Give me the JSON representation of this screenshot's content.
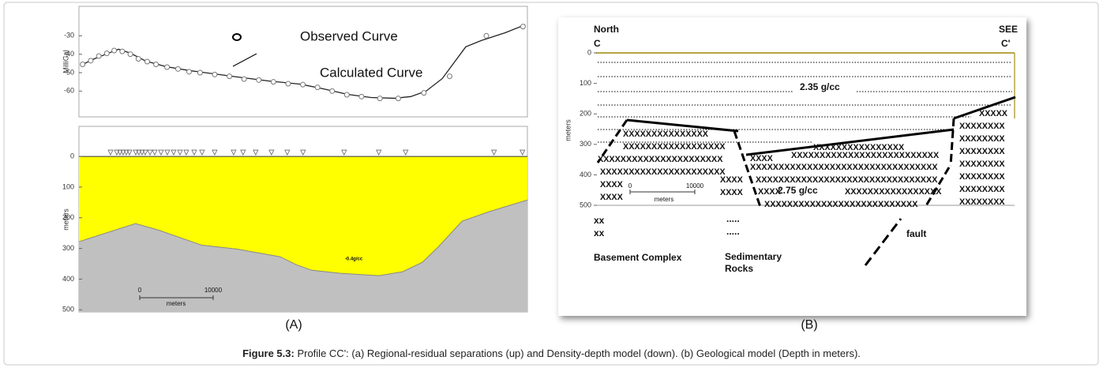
{
  "panel_a": {
    "label": "(A)",
    "gravity": {
      "type": "line",
      "y_label": "MilliGal",
      "legend": {
        "observed": "Observed Curve",
        "calculated": "Calculated Curve"
      },
      "xlim": [
        0,
        61100
      ],
      "ylim": [
        -74,
        -14
      ],
      "yticks": [
        -30,
        -40,
        -50,
        -60
      ],
      "calculated": {
        "x": [
          300,
          2150,
          4300,
          5400,
          7000,
          9100,
          11800,
          15100,
          18300,
          21500,
          25800,
          30100,
          33300,
          36600,
          39800,
          43000,
          45200,
          47300,
          49500,
          51100,
          52700,
          54800,
          58100,
          60800
        ],
        "values": [
          -45.9,
          -42.4,
          -39.0,
          -37.3,
          -39.4,
          -43.7,
          -46.7,
          -48.9,
          -50.6,
          -52.3,
          -54.5,
          -56.2,
          -58.8,
          -61.8,
          -63.5,
          -63.9,
          -63.0,
          -60.0,
          -53.2,
          -44.6,
          -36.0,
          -32.6,
          -28.3,
          -24.0
        ]
      },
      "observed": {
        "x": [
          500,
          1600,
          2700,
          3800,
          4800,
          5900,
          7000,
          8100,
          9300,
          10500,
          12000,
          13500,
          15000,
          16500,
          18500,
          20500,
          22500,
          24500,
          26500,
          28500,
          30500,
          32500,
          34500,
          36500,
          38500,
          41000,
          43500,
          47000,
          50500,
          55500,
          60500
        ],
        "values": [
          -45.5,
          -43.5,
          -41,
          -39.5,
          -38,
          -38.5,
          -40,
          -42.5,
          -44,
          -45.5,
          -47,
          -48,
          -49.5,
          -50,
          -51,
          -52,
          -53.5,
          -54,
          -55,
          -56,
          -56.5,
          -58,
          -60,
          -62,
          -63,
          -64,
          -64,
          -61,
          -52,
          -30,
          -25
        ]
      }
    },
    "model": {
      "type": "area",
      "y_label": "meters",
      "xlim": [
        0,
        61100
      ],
      "ylim": [
        -98,
        507
      ],
      "inverted": true,
      "yticks": [
        0,
        100,
        200,
        300,
        400,
        500
      ],
      "stations": [
        4300,
        5160,
        5590,
        6020,
        6450,
        6880,
        7740,
        8170,
        8600,
        9030,
        9680,
        10320,
        11180,
        12040,
        12900,
        13760,
        14620,
        15700,
        16770,
        18490,
        21070,
        22360,
        24080,
        26230,
        28380,
        30530,
        36120,
        40850,
        44510,
        56550,
        60420
      ],
      "basement": {
        "x": [
          0,
          7700,
          10800,
          16700,
          21500,
          27400,
          29600,
          31700,
          35500,
          40900,
          44100,
          46800,
          49000,
          52200,
          55900,
          61100
        ],
        "values": [
          278,
          219,
          240,
          289,
          302,
          327,
          353,
          371,
          381,
          389,
          376,
          345,
          294,
          211,
          180,
          142
        ]
      },
      "density_label": "-0.4g/cc",
      "colors": {
        "body": "#ffff00",
        "basement": "#c0c0c0"
      },
      "scale_bar": {
        "ticks": [
          0,
          10000
        ],
        "unit": "meters"
      }
    }
  },
  "panel_b": {
    "label": "(B)",
    "north": "North",
    "c": "C",
    "see": "SEE",
    "c_prime": "C'",
    "y_label": "meters",
    "ylim": [
      0,
      500
    ],
    "yticks": [
      0,
      100,
      200,
      300,
      400,
      500
    ],
    "upper_density": "2.35 g/cc",
    "lower_density": "2.75 g/cc",
    "fault": "fault",
    "basement_symbol": [
      "xx",
      "xx"
    ],
    "basement_label": "Basement Complex",
    "sediment_symbol": [
      ".....",
      "....."
    ],
    "sediment_label": [
      "Sedimentary",
      "Rocks"
    ],
    "patterns": [
      "XXXXXXXXXXXXXXX",
      "XXXXXXXXXXXXXXXXXX",
      "XXXXXXXXXXXXXXXXXXXXXX",
      "XXXX",
      "XXXXXXXXXXXXXXXXXX",
      "XXXX",
      "XXXX",
      "XXXX",
      "XXXX",
      "XXXXXXXXXXXXXXXX",
      "XXXX",
      "XXXXXXXXXXXXXXXXXXXXXXXXXX",
      "XXXXXXXXXXXXXXXXXXXXXXXXXXXXXXXXX",
      "XXXXXXXXXXXXXXXXXXXXXXXXXXXXXXXX",
      "XXXX",
      "XXXXXXXXXXXXXXXXX",
      "XXXXXXXXXXXXXXXXXXXXXXXXXXX",
      "XXXXX",
      "XXXXXXXX",
      "XXXXXXXX",
      "XXXXXXXX",
      "XXXXXXXX",
      "XXXXXXXX",
      "XXXXXXXX",
      "XXXXXXXX"
    ],
    "scale_bar": {
      "ticks": [
        0,
        10000
      ],
      "unit": "meters"
    }
  },
  "caption": {
    "label": "Figure 5.3:",
    "text": "Profile CC': (a) Regional-residual separations (up) and Density-depth model (down). (b) Geological model (Depth in meters)."
  }
}
